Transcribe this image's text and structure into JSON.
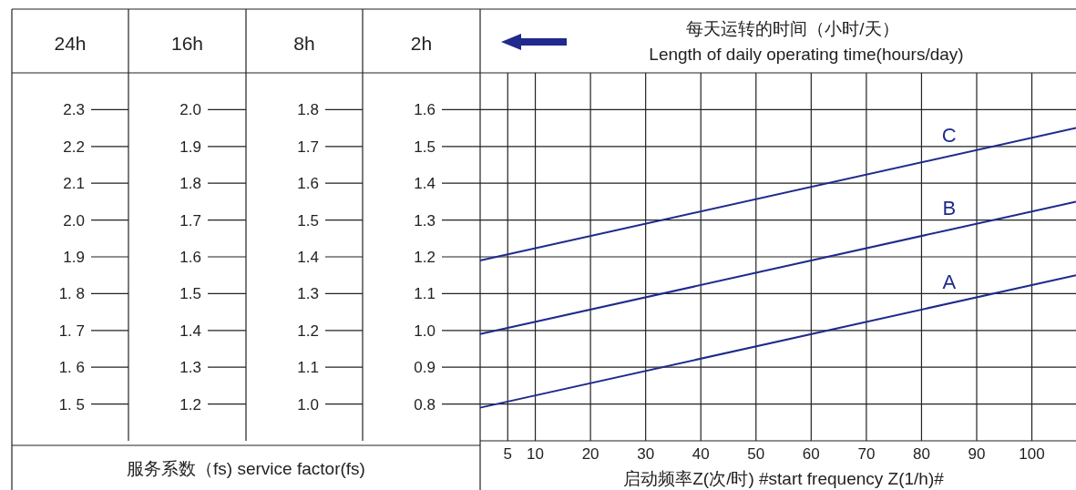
{
  "chart_data": {
    "type": "line",
    "title": "每天运转的时间（小时/天）",
    "subtitle": "Length of daily operating time(hours/day)",
    "xlabel": "启动频率Z(次/时)   #start frequency Z(1/h)#",
    "ylabel": "2h",
    "x": [
      0,
      108
    ],
    "series": [
      {
        "name": "A",
        "color": "#1f2a8c",
        "values": [
          0.79,
          1.15
        ]
      },
      {
        "name": "B",
        "color": "#1f2a8c",
        "values": [
          0.99,
          1.35
        ]
      },
      {
        "name": "C",
        "color": "#1f2a8c",
        "values": [
          1.19,
          1.55
        ]
      }
    ],
    "xlim": [
      0,
      108
    ],
    "xticks": [
      5,
      10,
      20,
      30,
      40,
      50,
      60,
      70,
      80,
      90,
      100
    ],
    "ylim": [
      0.7,
      1.7
    ],
    "yticks": [
      0.8,
      0.9,
      {
        "value": 1.0,
        "label": "1.0"
      },
      1.1,
      1.2,
      1.3,
      1.4,
      1.5,
      1.6
    ],
    "grid": true,
    "annotations": [
      "服务系数（fs)   service factor(fs)",
      "24h",
      "1. 5",
      "1. 6",
      "1. 7",
      "1. 8",
      "1.9",
      "2.0",
      "2.1",
      "2.2",
      "2.3",
      "16h",
      "1.2",
      "1.3",
      "1.4",
      "1.5",
      "1.6",
      "1.7",
      "1.8",
      "1.9",
      "2.0",
      "8h",
      "1.0",
      "1.1",
      "1.2",
      "1.3",
      "1.4",
      "1.5",
      "1.6",
      "1.7",
      "1.8"
    ]
  }
}
